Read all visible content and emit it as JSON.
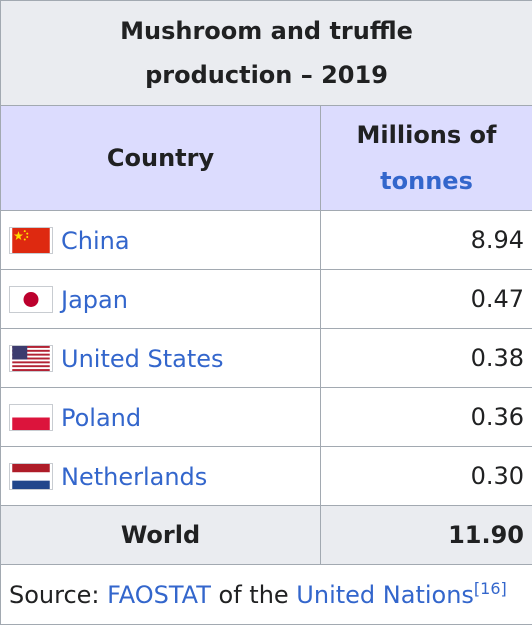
{
  "caption": {
    "line1": "Mushroom and truffle",
    "line2": "production – 2019"
  },
  "headers": {
    "country": "Country",
    "unit_line1": "Millions of",
    "unit_line2": "tonnes"
  },
  "rows": [
    {
      "country": "China",
      "value": "8.94",
      "flag_icon": "china-flag-icon"
    },
    {
      "country": "Japan",
      "value": "0.47",
      "flag_icon": "japan-flag-icon"
    },
    {
      "country": "United States",
      "value": "0.38",
      "flag_icon": "united-states-flag-icon"
    },
    {
      "country": "Poland",
      "value": "0.36",
      "flag_icon": "poland-flag-icon"
    },
    {
      "country": "Netherlands",
      "value": "0.30",
      "flag_icon": "netherlands-flag-icon"
    }
  ],
  "world": {
    "label": "World",
    "value": "11.90"
  },
  "source": {
    "prefix": "Source: ",
    "link1": "FAOSTAT",
    "middle": " of the ",
    "link2": "United Nations",
    "ref": "[16]"
  },
  "colors": {
    "link": "#3366cc",
    "header_bg": "#dcdcfe",
    "caption_bg": "#eaecf0",
    "border": "#a2a9b1"
  }
}
